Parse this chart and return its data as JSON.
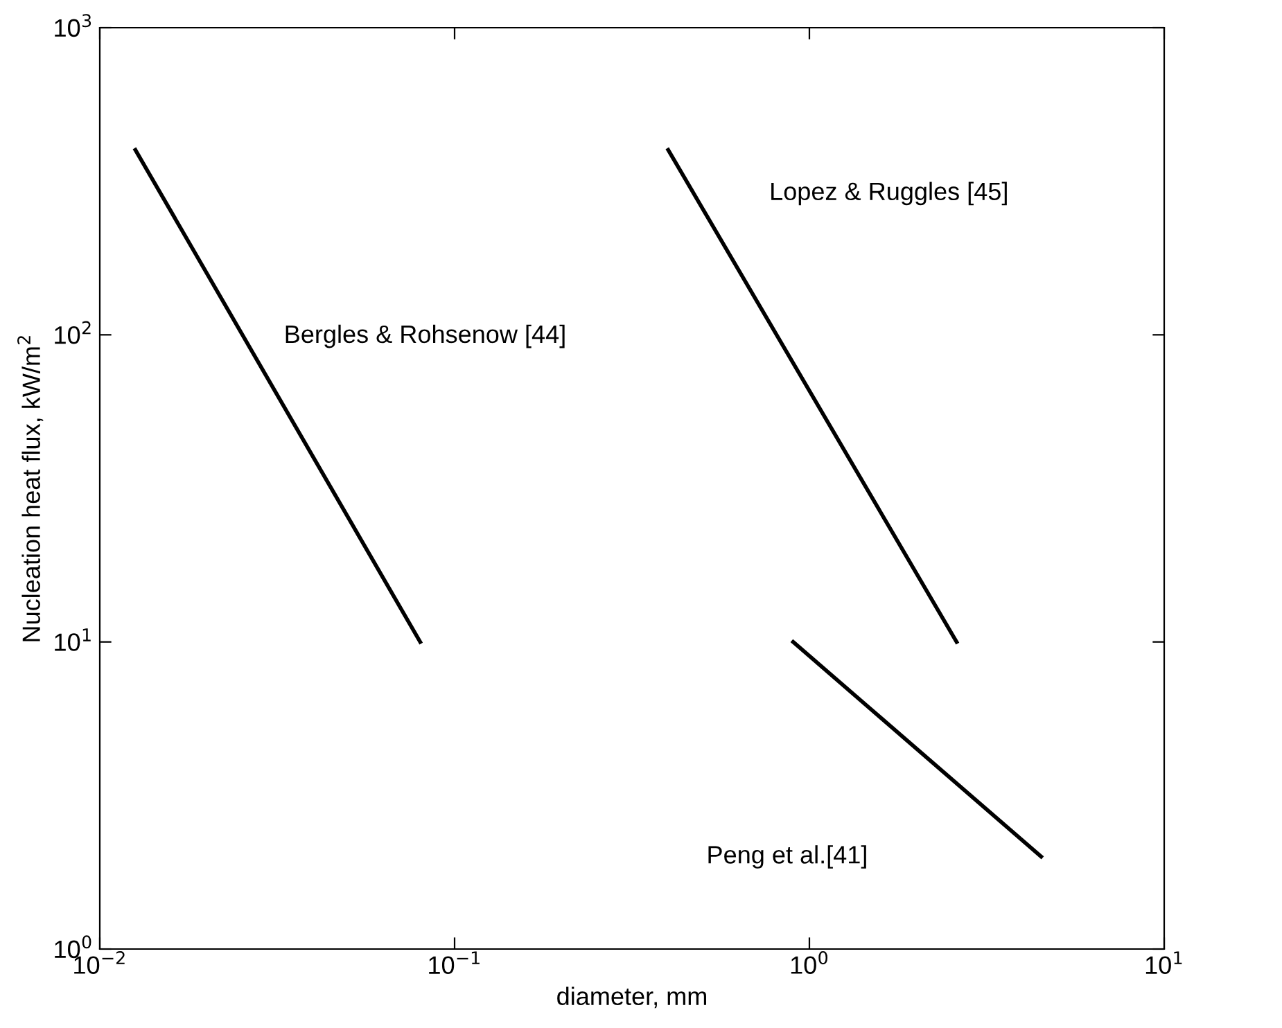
{
  "chart_data": {
    "type": "line",
    "xlabel": "diameter, mm",
    "ylabel": "Nucleation heat flux, kW/m$^{2}$",
    "log": "xy",
    "xlim": [
      0.01,
      10
    ],
    "ylim": [
      1,
      1000
    ],
    "xticks": [
      {
        "value": 0.01,
        "label": "10$^{−2}$"
      },
      {
        "value": 0.1,
        "label": "10$^{−1}$"
      },
      {
        "value": 1,
        "label": "10$^{0}$"
      },
      {
        "value": 10,
        "label": "10$^{1}$"
      }
    ],
    "yticks": [
      {
        "value": 1,
        "label": "10$^{0}$"
      },
      {
        "value": 10,
        "label": "10$^{1}$"
      },
      {
        "value": 100,
        "label": "10$^{2}$"
      },
      {
        "value": 1000,
        "label": "10$^{3}$"
      }
    ],
    "grid": false,
    "marker": "none",
    "line_style": "solid",
    "series": [
      {
        "color": "#000000",
        "x": [
          0.0126,
          0.08
        ],
        "values": [
          400,
          10
        ]
      },
      {
        "color": "#000000",
        "x": [
          0.4,
          2.6
        ],
        "values": [
          400,
          10
        ]
      },
      {
        "color": "#000000",
        "x": [
          0.9,
          4.5
        ],
        "values": [
          10,
          2
        ]
      }
    ],
    "annotations": [
      "Bergles & Rohsenow [44]",
      "Lopez & Ruggles [45]",
      "Peng et al.[41]"
    ]
  }
}
